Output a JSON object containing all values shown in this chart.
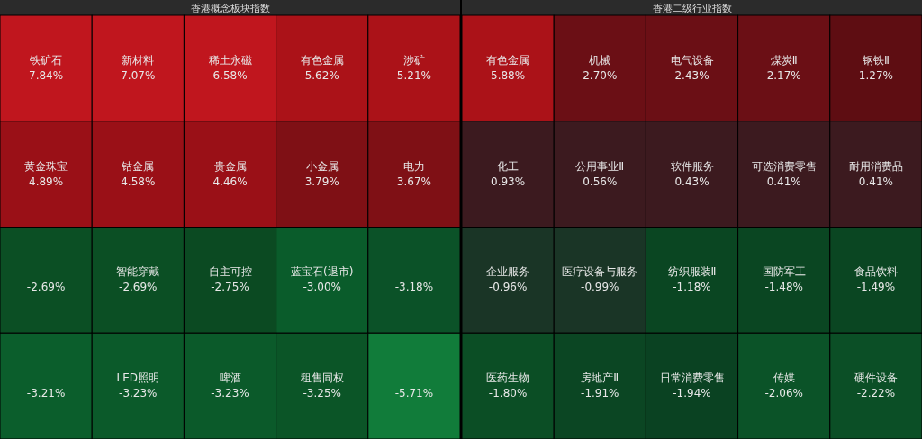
{
  "chart_data": [
    {
      "type": "other",
      "title": "香港概念板块指数",
      "categories": [
        "铁矿石",
        "新材料",
        "稀土永磁",
        "有色金属",
        "涉矿",
        "黄金珠宝",
        "钴金属",
        "贵金属",
        "小金属",
        "电力",
        null,
        "智能穿戴",
        "自主可控",
        "蓝宝石(退市)",
        null,
        null,
        "LED照明",
        "啤酒",
        "租售同权",
        null
      ],
      "values": [
        7.84,
        7.07,
        6.58,
        5.62,
        5.21,
        4.89,
        4.58,
        4.46,
        3.79,
        3.67,
        -2.69,
        -2.69,
        -2.75,
        -3.0,
        -3.18,
        -3.21,
        -3.23,
        -3.23,
        -3.25,
        -5.71
      ],
      "value_labels": [
        "7.84%",
        "7.07%",
        "6.58%",
        "5.62%",
        "5.21%",
        "4.89%",
        "4.58%",
        "4.46%",
        "3.79%",
        "3.67%",
        "-2.69%",
        "-2.69%",
        "-2.75%",
        "-3.00%",
        "-3.18%",
        "-3.21%",
        "-3.23%",
        "-3.23%",
        "-3.25%",
        "-5.71%"
      ],
      "colors": [
        "#c0161e",
        "#c0161e",
        "#c0161e",
        "#ab1218",
        "#ab1218",
        "#9a1017",
        "#9a1017",
        "#9a1017",
        "#7f1015",
        "#7f1015",
        "#0b4f24",
        "#0b4f24",
        "#0b4a22",
        "#0a5c2b",
        "#0b5228",
        "#0b5e2c",
        "#0b5a2a",
        "#0b5a2a",
        "#0b5527",
        "#117c3a"
      ]
    },
    {
      "type": "other",
      "title": "香港二级行业指数",
      "categories": [
        "有色金属",
        "机械",
        "电气设备",
        "煤炭Ⅱ",
        "钢铁Ⅱ",
        "化工",
        "公用事业Ⅱ",
        "软件服务",
        "可选消费零售",
        "耐用消费品",
        "企业服务",
        "医疗设备与服务",
        "纺织服装Ⅱ",
        "国防军工",
        "食品饮料",
        "医药生物",
        "房地产Ⅱ",
        "日常消费零售",
        "传媒",
        "硬件设备"
      ],
      "values": [
        5.88,
        2.7,
        2.43,
        2.17,
        1.27,
        0.93,
        0.56,
        0.43,
        0.41,
        0.41,
        -0.96,
        -0.99,
        -1.18,
        -1.48,
        -1.49,
        -1.8,
        -1.91,
        -1.94,
        -2.06,
        -2.22
      ],
      "value_labels": [
        "5.88%",
        "2.70%",
        "2.43%",
        "2.17%",
        "1.27%",
        "0.93%",
        "0.56%",
        "0.43%",
        "0.41%",
        "0.41%",
        "-0.96%",
        "-0.99%",
        "-1.18%",
        "-1.48%",
        "-1.49%",
        "-1.80%",
        "-1.91%",
        "-1.94%",
        "-2.06%",
        "-2.22%"
      ],
      "colors": [
        "#ab1218",
        "#6b0f15",
        "#6b0f15",
        "#6b0f15",
        "#5e0d12",
        "#3c1a1f",
        "#3c1a1f",
        "#3c1a1f",
        "#3c1a1f",
        "#3c1a1f",
        "#1a3526",
        "#1a3526",
        "#0a4622",
        "#0a4622",
        "#0a4622",
        "#0b4e25",
        "#0b4623",
        "#0a4222",
        "#0b5328",
        "#0b4f26"
      ]
    }
  ]
}
